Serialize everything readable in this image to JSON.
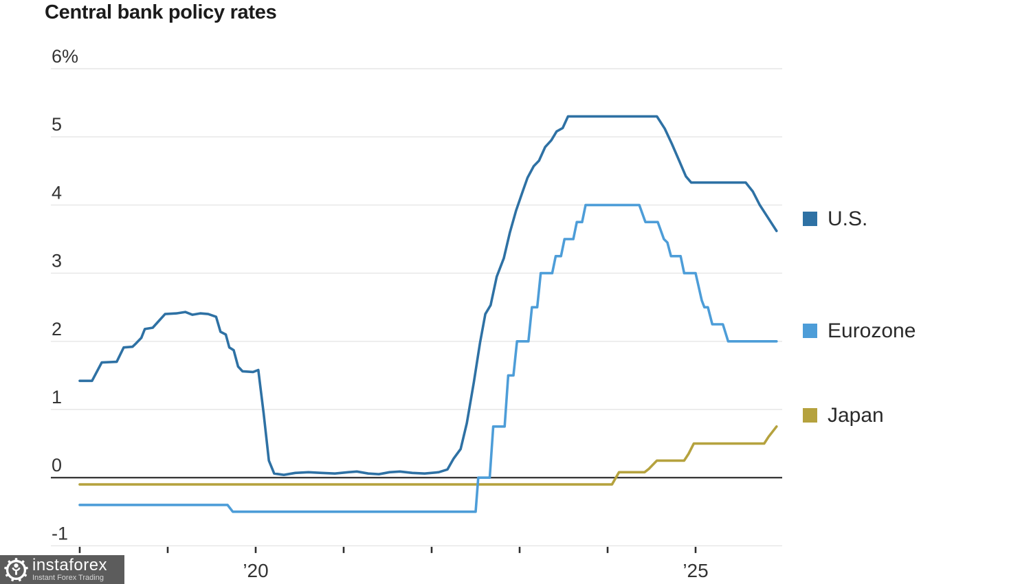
{
  "title": "Central bank policy rates",
  "watermark": {
    "brand": "instaforex",
    "tagline": "Instant Forex Trading"
  },
  "colors": {
    "us_line": "#2e71a4",
    "eurozone_line": "#4d9dd8",
    "japan_line": "#b5a23e",
    "gridline": "#e6e6e6",
    "zero_line": "#3a3a3a",
    "tick": "#2e2e2e",
    "axis_text": "#333333",
    "title_text": "#1b1b1b"
  },
  "chart_data": {
    "type": "line",
    "title": "Central bank policy rates",
    "xlabel": "",
    "ylabel": "",
    "ylim": [
      -1,
      6
    ],
    "xlim_years": [
      2017.67,
      2026.2
    ],
    "grid": "horizontal",
    "legend_position": "right",
    "y_ticks": [
      {
        "v": 6,
        "label": "6%"
      },
      {
        "v": 5,
        "label": "5"
      },
      {
        "v": 4,
        "label": "4"
      },
      {
        "v": 3,
        "label": "3"
      },
      {
        "v": 2,
        "label": "2"
      },
      {
        "v": 1,
        "label": "1"
      },
      {
        "v": 0,
        "label": "0"
      },
      {
        "v": -1,
        "label": "-1"
      }
    ],
    "x_tick_years": [
      2018,
      2019,
      2020,
      2021,
      2022,
      2023,
      2024,
      2025
    ],
    "x_labels": [
      {
        "year": 2020,
        "label": "’20"
      },
      {
        "year": 2025,
        "label": "’25"
      }
    ],
    "series": [
      {
        "name": "U.S.",
        "color": "#2e71a4",
        "points": [
          [
            2018.0,
            1.42
          ],
          [
            2018.14,
            1.42
          ],
          [
            2018.25,
            1.69
          ],
          [
            2018.42,
            1.7
          ],
          [
            2018.5,
            1.91
          ],
          [
            2018.6,
            1.92
          ],
          [
            2018.64,
            1.97
          ],
          [
            2018.7,
            2.05
          ],
          [
            2018.74,
            2.18
          ],
          [
            2018.83,
            2.2
          ],
          [
            2018.9,
            2.3
          ],
          [
            2018.97,
            2.4
          ],
          [
            2019.1,
            2.41
          ],
          [
            2019.2,
            2.43
          ],
          [
            2019.28,
            2.39
          ],
          [
            2019.37,
            2.41
          ],
          [
            2019.46,
            2.4
          ],
          [
            2019.55,
            2.36
          ],
          [
            2019.6,
            2.14
          ],
          [
            2019.66,
            2.1
          ],
          [
            2019.7,
            1.91
          ],
          [
            2019.75,
            1.87
          ],
          [
            2019.8,
            1.63
          ],
          [
            2019.85,
            1.56
          ],
          [
            2019.97,
            1.55
          ],
          [
            2020.03,
            1.58
          ],
          [
            2020.09,
            0.95
          ],
          [
            2020.15,
            0.25
          ],
          [
            2020.21,
            0.06
          ],
          [
            2020.32,
            0.04
          ],
          [
            2020.45,
            0.07
          ],
          [
            2020.6,
            0.08
          ],
          [
            2020.75,
            0.07
          ],
          [
            2020.9,
            0.06
          ],
          [
            2021.05,
            0.08
          ],
          [
            2021.15,
            0.09
          ],
          [
            2021.28,
            0.06
          ],
          [
            2021.4,
            0.05
          ],
          [
            2021.52,
            0.08
          ],
          [
            2021.64,
            0.09
          ],
          [
            2021.78,
            0.07
          ],
          [
            2021.92,
            0.06
          ],
          [
            2022.08,
            0.08
          ],
          [
            2022.18,
            0.12
          ],
          [
            2022.25,
            0.28
          ],
          [
            2022.33,
            0.42
          ],
          [
            2022.4,
            0.8
          ],
          [
            2022.48,
            1.4
          ],
          [
            2022.55,
            1.98
          ],
          [
            2022.61,
            2.4
          ],
          [
            2022.67,
            2.53
          ],
          [
            2022.74,
            2.95
          ],
          [
            2022.82,
            3.22
          ],
          [
            2022.89,
            3.6
          ],
          [
            2022.96,
            3.92
          ],
          [
            2023.03,
            4.18
          ],
          [
            2023.09,
            4.4
          ],
          [
            2023.16,
            4.57
          ],
          [
            2023.22,
            4.65
          ],
          [
            2023.29,
            4.85
          ],
          [
            2023.36,
            4.95
          ],
          [
            2023.42,
            5.08
          ],
          [
            2023.49,
            5.13
          ],
          [
            2023.55,
            5.3
          ],
          [
            2024.56,
            5.3
          ],
          [
            2024.65,
            5.12
          ],
          [
            2024.73,
            4.9
          ],
          [
            2024.81,
            4.66
          ],
          [
            2024.89,
            4.42
          ],
          [
            2024.95,
            4.33
          ],
          [
            2025.57,
            4.33
          ],
          [
            2025.65,
            4.2
          ],
          [
            2025.73,
            4.0
          ],
          [
            2025.82,
            3.82
          ],
          [
            2025.92,
            3.62
          ]
        ]
      },
      {
        "name": "Eurozone",
        "color": "#4d9dd8",
        "points": [
          [
            2018.0,
            -0.4
          ],
          [
            2019.68,
            -0.4
          ],
          [
            2019.74,
            -0.5
          ],
          [
            2022.5,
            -0.5
          ],
          [
            2022.53,
            0.0
          ],
          [
            2022.66,
            0.0
          ],
          [
            2022.7,
            0.75
          ],
          [
            2022.83,
            0.75
          ],
          [
            2022.87,
            1.5
          ],
          [
            2022.93,
            1.5
          ],
          [
            2022.97,
            2.0
          ],
          [
            2023.1,
            2.0
          ],
          [
            2023.14,
            2.5
          ],
          [
            2023.2,
            2.5
          ],
          [
            2023.24,
            3.0
          ],
          [
            2023.37,
            3.0
          ],
          [
            2023.41,
            3.25
          ],
          [
            2023.47,
            3.25
          ],
          [
            2023.51,
            3.5
          ],
          [
            2023.61,
            3.5
          ],
          [
            2023.65,
            3.75
          ],
          [
            2023.71,
            3.75
          ],
          [
            2023.75,
            4.0
          ],
          [
            2024.36,
            4.0
          ],
          [
            2024.43,
            3.75
          ],
          [
            2024.57,
            3.75
          ],
          [
            2024.64,
            3.5
          ],
          [
            2024.68,
            3.45
          ],
          [
            2024.72,
            3.25
          ],
          [
            2024.83,
            3.25
          ],
          [
            2024.87,
            3.0
          ],
          [
            2025.0,
            3.0
          ],
          [
            2025.07,
            2.6
          ],
          [
            2025.1,
            2.5
          ],
          [
            2025.14,
            2.5
          ],
          [
            2025.19,
            2.25
          ],
          [
            2025.31,
            2.25
          ],
          [
            2025.37,
            2.0
          ],
          [
            2025.92,
            2.0
          ]
        ]
      },
      {
        "name": "Japan",
        "color": "#b5a23e",
        "points": [
          [
            2018.0,
            -0.1
          ],
          [
            2024.05,
            -0.1
          ],
          [
            2024.13,
            0.08
          ],
          [
            2024.42,
            0.08
          ],
          [
            2024.47,
            0.13
          ],
          [
            2024.56,
            0.25
          ],
          [
            2024.87,
            0.25
          ],
          [
            2024.92,
            0.35
          ],
          [
            2024.98,
            0.5
          ],
          [
            2025.78,
            0.5
          ],
          [
            2025.83,
            0.6
          ],
          [
            2025.92,
            0.75
          ]
        ]
      }
    ]
  }
}
